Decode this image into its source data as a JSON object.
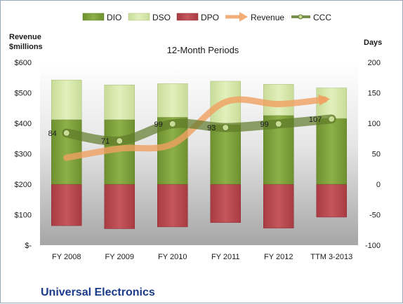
{
  "colors": {
    "dio": "#7fa03a",
    "dso": "#d5e8a8",
    "dpo": "#b8444a",
    "revenue": "#f0a060",
    "ccc": "#5f7a2a",
    "company": "#1a3a8a"
  },
  "chart_data": {
    "type": "bar",
    "title": "",
    "subtitle": "12-Month Periods",
    "company": "Universal Electronics",
    "left_axis_title": [
      "Revenue",
      "$millions"
    ],
    "right_axis_title": "Days",
    "categories": [
      "FY 2008",
      "FY 2009",
      "FY 2010",
      "FY 2011",
      "FY 2012",
      "TTM 3-2013"
    ],
    "left_ylim": [
      0,
      600
    ],
    "left_ticks": [
      0,
      100,
      200,
      300,
      400,
      500,
      600
    ],
    "left_tick_labels": [
      "$-",
      "$100",
      "$200",
      "$300",
      "$400",
      "$500",
      "$600"
    ],
    "right_ylim": [
      -100,
      200
    ],
    "right_ticks": [
      -100,
      -50,
      0,
      50,
      100,
      150,
      200
    ],
    "right_tick_labels": [
      "-100",
      "-50",
      "0",
      "50",
      "100",
      "150",
      "200"
    ],
    "legend": [
      "DIO",
      "DSO",
      "DPO",
      "Revenue",
      "CCC"
    ],
    "series": [
      {
        "name": "DIO",
        "axis": "right",
        "values": [
          106,
          106,
          110,
          98,
          113,
          108
        ]
      },
      {
        "name": "DSO",
        "axis": "right",
        "values": [
          65,
          57,
          55,
          71,
          51,
          50
        ]
      },
      {
        "name": "DPO",
        "axis": "right",
        "values": [
          -68,
          -73,
          -70,
          -63,
          -72,
          -54
        ]
      },
      {
        "name": "Revenue",
        "axis": "left",
        "values": [
          287,
          317,
          332,
          470,
          463,
          478
        ]
      },
      {
        "name": "CCC",
        "axis": "right",
        "values": [
          84,
          71,
          99,
          93,
          99,
          107
        ]
      }
    ],
    "ccc_labels": [
      "84",
      "71",
      "99",
      "93",
      "99",
      "107"
    ],
    "grid": false,
    "legend_position": "top"
  }
}
